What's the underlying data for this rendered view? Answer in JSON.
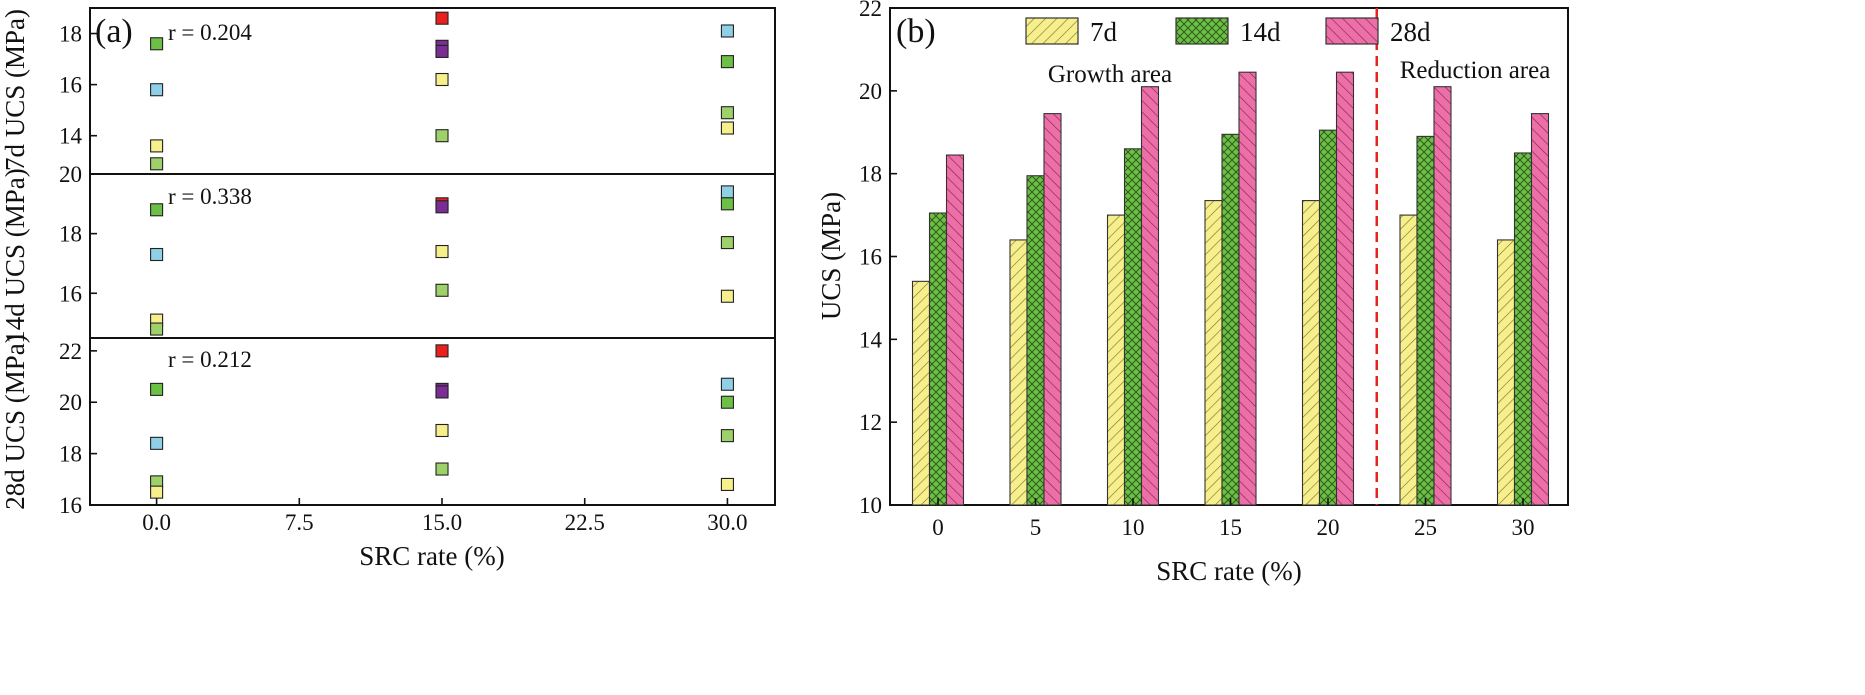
{
  "colors": {
    "yellow": "#f7ee8c",
    "green": "#6cc046",
    "lightgreen": "#9ed16a",
    "blue": "#8fd0e6",
    "red": "#e8201e",
    "purple": "#7a2e93",
    "pink": "#ee6fa8",
    "divider": "#e8201e"
  },
  "chart_data": [
    {
      "type": "scatter",
      "panel": "(a)",
      "xlabel": "SRC rate (%)",
      "xticks": [
        "0.0",
        "7.5",
        "15.0",
        "22.5",
        "30.0"
      ],
      "xlim": [
        -3.5,
        32.5
      ],
      "subplots": [
        {
          "ylabel": "7d UCS (MPa)",
          "ylim": [
            12.5,
            19
          ],
          "yticks": [
            14,
            16,
            18
          ],
          "r_label": "r = 0.204",
          "points": [
            {
              "x": 0,
              "y": 17.6,
              "color": "green"
            },
            {
              "x": 0,
              "y": 15.8,
              "color": "blue"
            },
            {
              "x": 0,
              "y": 13.6,
              "color": "yellow"
            },
            {
              "x": 0,
              "y": 12.9,
              "color": "lightgreen"
            },
            {
              "x": 15,
              "y": 18.6,
              "color": "red"
            },
            {
              "x": 15,
              "y": 17.5,
              "color": "purple"
            },
            {
              "x": 15,
              "y": 17.3,
              "color": "purple"
            },
            {
              "x": 15,
              "y": 16.2,
              "color": "yellow"
            },
            {
              "x": 15,
              "y": 14.0,
              "color": "lightgreen"
            },
            {
              "x": 30,
              "y": 18.1,
              "color": "blue"
            },
            {
              "x": 30,
              "y": 16.9,
              "color": "green"
            },
            {
              "x": 30,
              "y": 14.9,
              "color": "lightgreen"
            },
            {
              "x": 30,
              "y": 14.3,
              "color": "yellow"
            }
          ]
        },
        {
          "ylabel": "14d UCS (MPa)",
          "ylim": [
            14.5,
            20
          ],
          "yticks": [
            16,
            18,
            20
          ],
          "r_label": "r = 0.338",
          "points": [
            {
              "x": 0,
              "y": 18.8,
              "color": "green"
            },
            {
              "x": 0,
              "y": 17.3,
              "color": "blue"
            },
            {
              "x": 0,
              "y": 15.1,
              "color": "yellow"
            },
            {
              "x": 0,
              "y": 14.8,
              "color": "lightgreen"
            },
            {
              "x": 15,
              "y": 19.0,
              "color": "red"
            },
            {
              "x": 15,
              "y": 18.9,
              "color": "purple"
            },
            {
              "x": 15,
              "y": 17.4,
              "color": "yellow"
            },
            {
              "x": 15,
              "y": 16.1,
              "color": "lightgreen"
            },
            {
              "x": 30,
              "y": 19.4,
              "color": "blue"
            },
            {
              "x": 30,
              "y": 19.0,
              "color": "green"
            },
            {
              "x": 30,
              "y": 17.7,
              "color": "lightgreen"
            },
            {
              "x": 30,
              "y": 15.9,
              "color": "yellow"
            }
          ]
        },
        {
          "ylabel": "28d UCS (MPa)",
          "ylim": [
            16,
            22.5
          ],
          "yticks": [
            16,
            18,
            20,
            22
          ],
          "r_label": "r = 0.212",
          "points": [
            {
              "x": 0,
              "y": 20.5,
              "color": "green"
            },
            {
              "x": 0,
              "y": 18.4,
              "color": "blue"
            },
            {
              "x": 0,
              "y": 16.9,
              "color": "lightgreen"
            },
            {
              "x": 0,
              "y": 16.5,
              "color": "yellow"
            },
            {
              "x": 15,
              "y": 22.0,
              "color": "red"
            },
            {
              "x": 15,
              "y": 20.5,
              "color": "purple"
            },
            {
              "x": 15,
              "y": 20.4,
              "color": "purple"
            },
            {
              "x": 15,
              "y": 18.9,
              "color": "yellow"
            },
            {
              "x": 15,
              "y": 17.4,
              "color": "lightgreen"
            },
            {
              "x": 30,
              "y": 20.7,
              "color": "blue"
            },
            {
              "x": 30,
              "y": 20.0,
              "color": "green"
            },
            {
              "x": 30,
              "y": 18.7,
              "color": "lightgreen"
            },
            {
              "x": 30,
              "y": 16.8,
              "color": "yellow"
            }
          ]
        }
      ]
    },
    {
      "type": "bar",
      "panel": "(b)",
      "xlabel": "SRC rate (%)",
      "ylabel": "UCS (MPa)",
      "categories": [
        "0",
        "5",
        "10",
        "15",
        "20",
        "25",
        "30"
      ],
      "ylim": [
        10,
        22
      ],
      "yticks": [
        10,
        12,
        14,
        16,
        18,
        20,
        22
      ],
      "series": [
        {
          "name": "7d",
          "color": "yellow",
          "values": [
            15.4,
            16.4,
            17.0,
            17.35,
            17.35,
            17.0,
            16.4
          ]
        },
        {
          "name": "14d",
          "color": "green",
          "values": [
            17.05,
            17.95,
            18.6,
            18.95,
            19.05,
            18.9,
            18.5
          ]
        },
        {
          "name": "28d",
          "color": "pink",
          "values": [
            18.45,
            19.45,
            20.1,
            20.45,
            20.45,
            20.1,
            19.45
          ]
        }
      ],
      "regions": [
        "Growth area",
        "Reduction area"
      ],
      "divider_after_category_value": 22.5
    }
  ]
}
